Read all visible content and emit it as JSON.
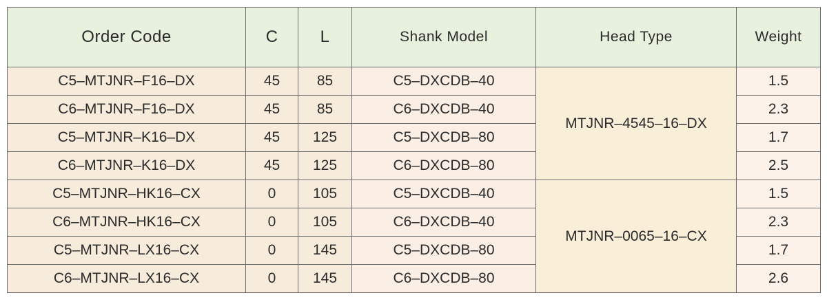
{
  "headers": {
    "order_code": "Order Code",
    "c": "C",
    "l": "L",
    "shank_model": "Shank Model",
    "head_type": "Head Type",
    "weight": "Weight"
  },
  "rows": [
    {
      "order_code": "C5–MTJNR–F16–DX",
      "c": "45",
      "l": "85",
      "shank_model": "C5–DXCDB–40",
      "weight": "1.5"
    },
    {
      "order_code": "C6–MTJNR–F16–DX",
      "c": "45",
      "l": "85",
      "shank_model": "C6–DXCDB–40",
      "weight": "2.3"
    },
    {
      "order_code": "C5–MTJNR–K16–DX",
      "c": "45",
      "l": "125",
      "shank_model": "C5–DXCDB–80",
      "weight": "1.7"
    },
    {
      "order_code": "C6–MTJNR–K16–DX",
      "c": "45",
      "l": "125",
      "shank_model": "C6–DXCDB–80",
      "weight": "2.5"
    },
    {
      "order_code": "C5–MTJNR–HK16–CX",
      "c": "0",
      "l": "105",
      "shank_model": "C5–DXCDB–40",
      "weight": "1.5"
    },
    {
      "order_code": "C6–MTJNR–HK16–CX",
      "c": "0",
      "l": "105",
      "shank_model": "C6–DXCDB–40",
      "weight": "2.3"
    },
    {
      "order_code": "C5–MTJNR–LX16–CX",
      "c": "0",
      "l": "145",
      "shank_model": "C5–DXCDB–80",
      "weight": "1.7"
    },
    {
      "order_code": "C6–MTJNR–LX16–CX",
      "c": "0",
      "l": "145",
      "shank_model": "C6–DXCDB–80",
      "weight": "2.6"
    }
  ],
  "head_types": [
    "MTJNR–4545–16–DX",
    "MTJNR–0065–16–CX"
  ],
  "colors": {
    "header_bg": "#e8f0de",
    "order_code_bg": "#f7ecdb",
    "shank_bg": "#fbeee5",
    "head_bg": "#f9efd9",
    "weight_bg": "#fdf2ea",
    "border": "#6b6b6b"
  }
}
